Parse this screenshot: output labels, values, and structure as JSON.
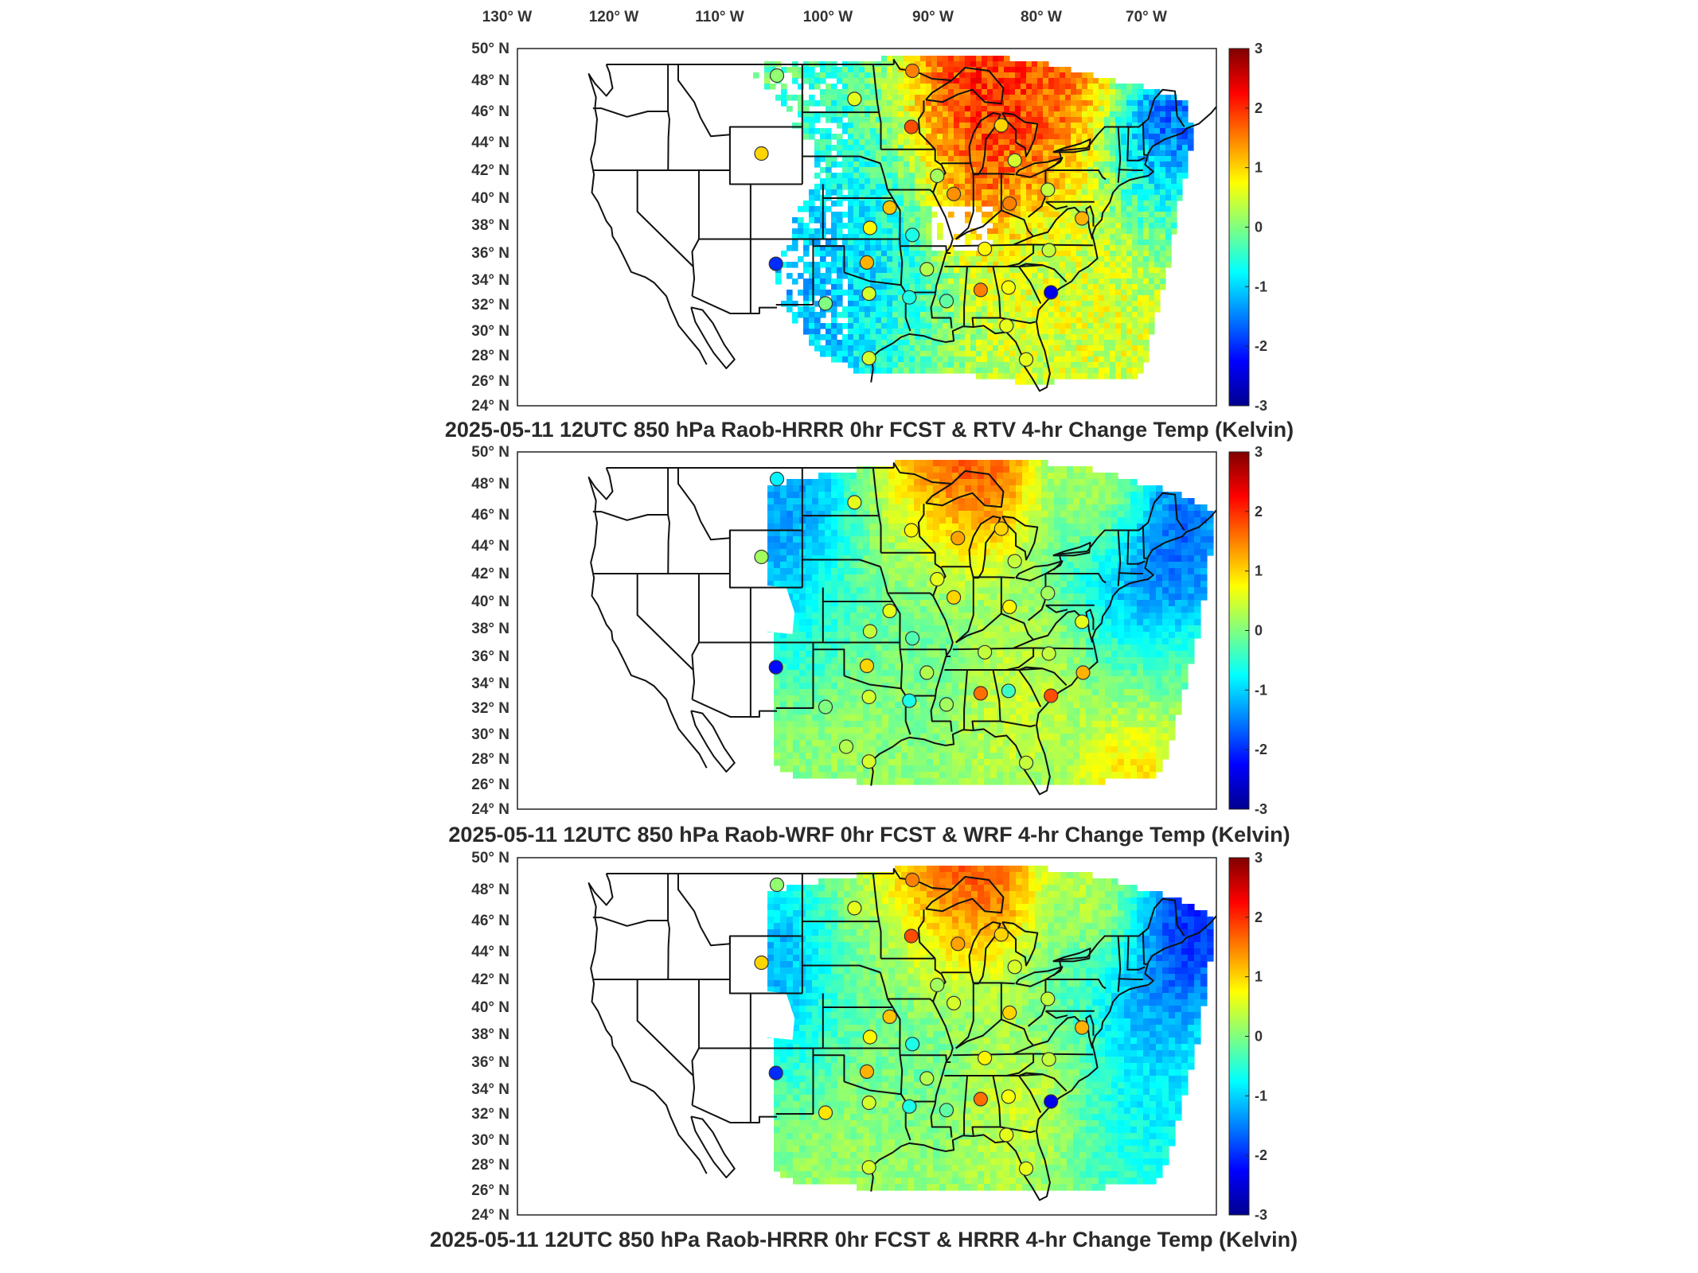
{
  "top_lon_labels": [
    "130° W",
    "120° W",
    "110° W",
    "100° W",
    "90° W",
    "80° W",
    "70° W"
  ],
  "lat_labels": [
    "50° N",
    "48° N",
    "46° N",
    "44° N",
    "42° N",
    "40° N",
    "38° N",
    "36° N",
    "34° N",
    "32° N",
    "30° N",
    "28° N",
    "26° N",
    "24° N"
  ],
  "colorbar": {
    "ticks": [
      "3",
      "2",
      "1",
      "0",
      "-1",
      "-2",
      "-3"
    ],
    "range": [
      -3,
      3
    ],
    "colormap": "jet",
    "stops": [
      "#00008f",
      "#0000ff",
      "#0080ff",
      "#00ffff",
      "#80ff80",
      "#ffff00",
      "#ff8000",
      "#ff0000",
      "#800000"
    ]
  },
  "panels": [
    {
      "title": "2025-05-11 12UTC 850 hPa Raob-HRRR 0hr FCST & RTV 4-hr Change Temp (Kelvin)",
      "field": "RTV",
      "stations": [
        {
          "lon": -106.5,
          "lat": 48.3,
          "value": 0.1
        },
        {
          "lon": -99.0,
          "lat": 46.8,
          "value": 0.6
        },
        {
          "lon": -93.4,
          "lat": 48.6,
          "value": 1.5
        },
        {
          "lon": -93.5,
          "lat": 45.0,
          "value": 1.8
        },
        {
          "lon": -108.0,
          "lat": 43.2,
          "value": 1.0
        },
        {
          "lon": -84.8,
          "lat": 45.1,
          "value": 1.0
        },
        {
          "lon": -83.5,
          "lat": 42.7,
          "value": 0.5
        },
        {
          "lon": -91.0,
          "lat": 41.6,
          "value": 0.2
        },
        {
          "lon": -89.4,
          "lat": 40.3,
          "value": 1.4
        },
        {
          "lon": -95.6,
          "lat": 39.3,
          "value": 1.1
        },
        {
          "lon": -97.5,
          "lat": 37.8,
          "value": 0.8
        },
        {
          "lon": -93.4,
          "lat": 37.3,
          "value": -0.6
        },
        {
          "lon": -84.0,
          "lat": 39.6,
          "value": 1.5
        },
        {
          "lon": -80.3,
          "lat": 40.6,
          "value": 0.4
        },
        {
          "lon": -77.0,
          "lat": 38.5,
          "value": 1.2
        },
        {
          "lon": -80.2,
          "lat": 36.2,
          "value": 0.4
        },
        {
          "lon": -86.4,
          "lat": 36.3,
          "value": 0.8
        },
        {
          "lon": -92.0,
          "lat": 34.8,
          "value": 0.3
        },
        {
          "lon": -97.8,
          "lat": 35.3,
          "value": 1.2
        },
        {
          "lon": -106.6,
          "lat": 35.2,
          "value": -2.0
        },
        {
          "lon": -101.8,
          "lat": 32.1,
          "value": 0.0
        },
        {
          "lon": -97.6,
          "lat": 32.9,
          "value": 0.5
        },
        {
          "lon": -93.7,
          "lat": 32.6,
          "value": -0.6
        },
        {
          "lon": -90.1,
          "lat": 32.3,
          "value": -0.2
        },
        {
          "lon": -86.8,
          "lat": 33.2,
          "value": 1.5
        },
        {
          "lon": -84.1,
          "lat": 33.4,
          "value": 0.7
        },
        {
          "lon": -80.0,
          "lat": 33.0,
          "value": -2.4
        },
        {
          "lon": -84.3,
          "lat": 30.4,
          "value": 0.6
        },
        {
          "lon": -97.6,
          "lat": 27.8,
          "value": 0.5
        },
        {
          "lon": -82.4,
          "lat": 27.7,
          "value": 0.6
        }
      ]
    },
    {
      "title": "2025-05-11 12UTC 850 hPa Raob-WRF 0hr FCST & WRF 4-hr Change Temp (Kelvin)",
      "field": "WRF",
      "stations": [
        {
          "lon": -106.5,
          "lat": 48.3,
          "value": -0.8
        },
        {
          "lon": -99.0,
          "lat": 46.8,
          "value": 0.6
        },
        {
          "lon": -93.5,
          "lat": 45.0,
          "value": 0.8
        },
        {
          "lon": -89.0,
          "lat": 44.5,
          "value": 1.3
        },
        {
          "lon": -84.8,
          "lat": 45.1,
          "value": 1.0
        },
        {
          "lon": -83.5,
          "lat": 42.9,
          "value": 0.4
        },
        {
          "lon": -108.0,
          "lat": 43.2,
          "value": 0.2
        },
        {
          "lon": -91.0,
          "lat": 41.6,
          "value": 0.6
        },
        {
          "lon": -89.4,
          "lat": 40.3,
          "value": 1.0
        },
        {
          "lon": -95.6,
          "lat": 39.3,
          "value": 0.6
        },
        {
          "lon": -97.5,
          "lat": 37.8,
          "value": 0.4
        },
        {
          "lon": -93.4,
          "lat": 37.3,
          "value": -0.3
        },
        {
          "lon": -84.0,
          "lat": 39.6,
          "value": 0.8
        },
        {
          "lon": -80.3,
          "lat": 40.6,
          "value": 0.2
        },
        {
          "lon": -77.0,
          "lat": 38.5,
          "value": 0.6
        },
        {
          "lon": -80.2,
          "lat": 36.2,
          "value": 0.4
        },
        {
          "lon": -86.4,
          "lat": 36.3,
          "value": 0.4
        },
        {
          "lon": -92.0,
          "lat": 34.8,
          "value": 0.3
        },
        {
          "lon": -97.8,
          "lat": 35.3,
          "value": 1.0
        },
        {
          "lon": -106.6,
          "lat": 35.2,
          "value": -2.2
        },
        {
          "lon": -101.8,
          "lat": 32.1,
          "value": 0.0
        },
        {
          "lon": -97.6,
          "lat": 32.9,
          "value": 0.5
        },
        {
          "lon": -93.7,
          "lat": 32.6,
          "value": -0.6
        },
        {
          "lon": -90.1,
          "lat": 32.3,
          "value": 0.2
        },
        {
          "lon": -86.8,
          "lat": 33.2,
          "value": 1.6
        },
        {
          "lon": -84.1,
          "lat": 33.4,
          "value": -0.4
        },
        {
          "lon": -80.0,
          "lat": 33.0,
          "value": 1.8
        },
        {
          "lon": -76.9,
          "lat": 34.8,
          "value": 1.2
        },
        {
          "lon": -99.8,
          "lat": 29.0,
          "value": 0.3
        },
        {
          "lon": -97.6,
          "lat": 27.8,
          "value": 0.5
        },
        {
          "lon": -82.4,
          "lat": 27.7,
          "value": 0.4
        }
      ]
    },
    {
      "title": "2025-05-11 12UTC 850 hPa Raob-HRRR 0hr FCST & HRRR 4-hr Change Temp (Kelvin)",
      "field": "HRRR",
      "stations": [
        {
          "lon": -106.5,
          "lat": 48.3,
          "value": 0.1
        },
        {
          "lon": -99.0,
          "lat": 46.8,
          "value": 0.6
        },
        {
          "lon": -93.4,
          "lat": 48.6,
          "value": 1.5
        },
        {
          "lon": -93.5,
          "lat": 45.0,
          "value": 1.8
        },
        {
          "lon": -89.0,
          "lat": 44.5,
          "value": 1.3
        },
        {
          "lon": -108.0,
          "lat": 43.2,
          "value": 1.0
        },
        {
          "lon": -84.8,
          "lat": 45.1,
          "value": 1.0
        },
        {
          "lon": -83.5,
          "lat": 42.9,
          "value": 0.5
        },
        {
          "lon": -91.0,
          "lat": 41.6,
          "value": 0.2
        },
        {
          "lon": -89.4,
          "lat": 40.3,
          "value": 0.5
        },
        {
          "lon": -95.6,
          "lat": 39.3,
          "value": 1.1
        },
        {
          "lon": -97.5,
          "lat": 37.8,
          "value": 0.8
        },
        {
          "lon": -93.4,
          "lat": 37.3,
          "value": -0.6
        },
        {
          "lon": -84.0,
          "lat": 39.6,
          "value": 1.0
        },
        {
          "lon": -80.3,
          "lat": 40.6,
          "value": 0.4
        },
        {
          "lon": -77.0,
          "lat": 38.5,
          "value": 1.2
        },
        {
          "lon": -80.2,
          "lat": 36.2,
          "value": 0.4
        },
        {
          "lon": -86.4,
          "lat": 36.3,
          "value": 0.8
        },
        {
          "lon": -92.0,
          "lat": 34.8,
          "value": 0.3
        },
        {
          "lon": -97.8,
          "lat": 35.3,
          "value": 1.2
        },
        {
          "lon": -106.6,
          "lat": 35.2,
          "value": -2.0
        },
        {
          "lon": -101.8,
          "lat": 32.1,
          "value": 0.9
        },
        {
          "lon": -97.6,
          "lat": 32.9,
          "value": 0.5
        },
        {
          "lon": -93.7,
          "lat": 32.6,
          "value": -0.6
        },
        {
          "lon": -90.1,
          "lat": 32.3,
          "value": -0.2
        },
        {
          "lon": -86.8,
          "lat": 33.2,
          "value": 1.6
        },
        {
          "lon": -84.1,
          "lat": 33.4,
          "value": 0.7
        },
        {
          "lon": -80.0,
          "lat": 33.0,
          "value": -2.4
        },
        {
          "lon": -84.3,
          "lat": 30.4,
          "value": 0.6
        },
        {
          "lon": -97.6,
          "lat": 27.8,
          "value": 0.5
        },
        {
          "lon": -82.4,
          "lat": 27.7,
          "value": 0.6
        }
      ]
    }
  ]
}
